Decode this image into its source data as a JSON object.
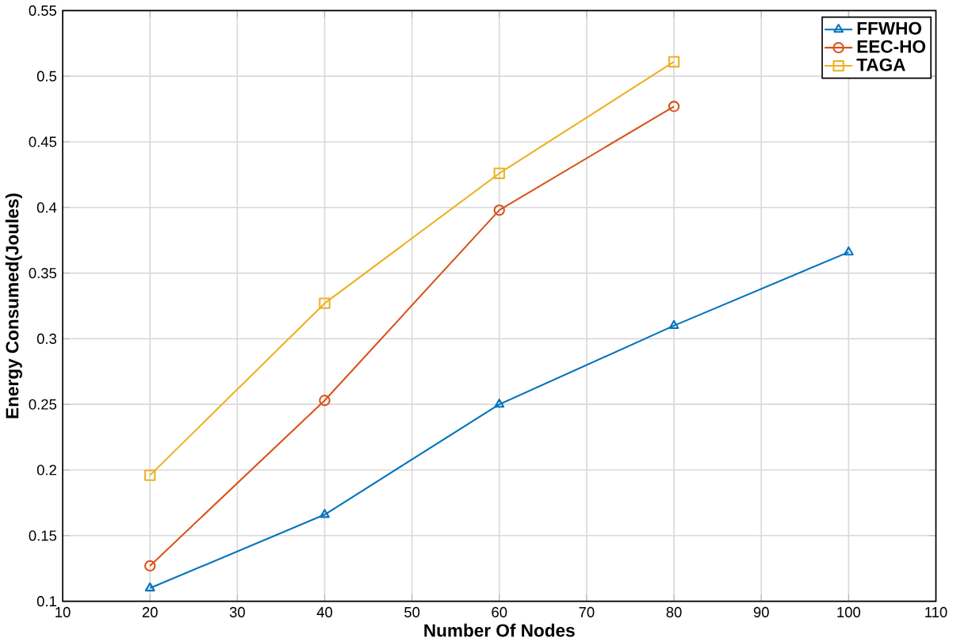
{
  "chart_data": {
    "type": "line",
    "xlabel": "Number Of Nodes",
    "ylabel": "Energy Consumed(Joules)",
    "x": [
      20,
      40,
      60,
      80,
      100
    ],
    "series": [
      {
        "name": "FFWHO",
        "color": "#0072bd",
        "marker": "triangle",
        "values": [
          0.11,
          0.166,
          0.25,
          0.31,
          0.366
        ]
      },
      {
        "name": "EEC-HO",
        "color": "#d95319",
        "marker": "circle",
        "values": [
          0.127,
          0.253,
          0.398,
          0.477,
          null
        ]
      },
      {
        "name": "TAGA",
        "color": "#edb120",
        "marker": "square",
        "values": [
          0.196,
          0.327,
          0.426,
          0.511,
          null
        ]
      }
    ],
    "xlim": [
      10,
      110
    ],
    "xticks": [
      10,
      20,
      30,
      40,
      50,
      60,
      70,
      80,
      90,
      100,
      110
    ],
    "ylim": [
      0.1,
      0.55
    ],
    "yticks": [
      0.1,
      0.15,
      0.2,
      0.25,
      0.3,
      0.35,
      0.4,
      0.45,
      0.5,
      0.55
    ],
    "grid": true,
    "legend": "top right"
  }
}
